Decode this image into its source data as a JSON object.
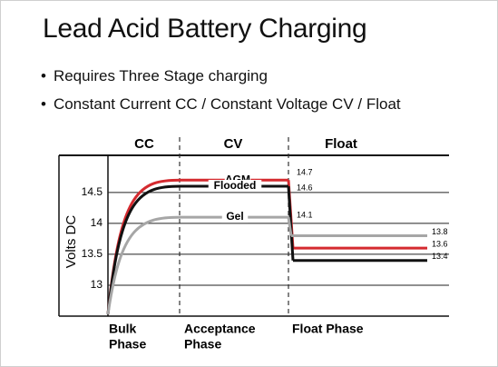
{
  "slide": {
    "title": "Lead Acid Battery Charging",
    "bullets": [
      "Requires Three Stage charging",
      "Constant Current CC / Constant Voltage CV / Float"
    ]
  },
  "chart_data": {
    "type": "line",
    "ylabel": "Volts DC",
    "stages": [
      "CC",
      "CV",
      "Float"
    ],
    "phases": [
      [
        "Bulk",
        "Phase"
      ],
      [
        "Acceptance",
        "Phase"
      ],
      [
        "Float Phase"
      ]
    ],
    "ylim": [
      12.5,
      15.1
    ],
    "yticks": [
      13,
      13.5,
      14,
      14.5
    ],
    "grid": true,
    "series": [
      {
        "name": "AGM",
        "color": "#d42a2f",
        "absorption": 14.7,
        "float": 13.6
      },
      {
        "name": "Flooded",
        "color": "#111111",
        "absorption": 14.6,
        "float": 13.4
      },
      {
        "name": "Gel",
        "color": "#a6a6a6",
        "absorption": 14.1,
        "float": 13.8
      }
    ]
  }
}
